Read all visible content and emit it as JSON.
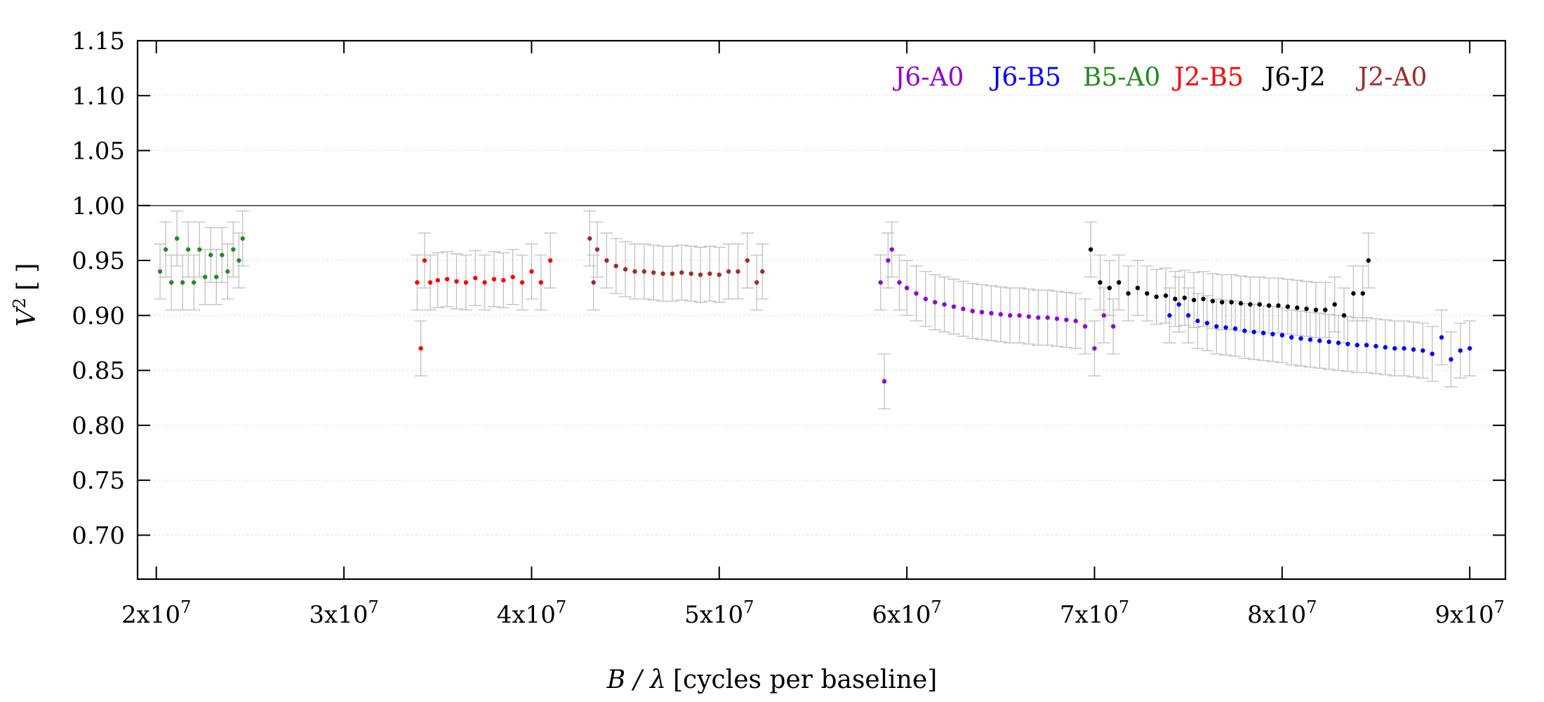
{
  "chart_data": {
    "type": "scatter",
    "title": "",
    "xlabel": "B / λ [cycles per baseline]",
    "xlabel_symbol": "B / λ",
    "xlabel_text": "[cycles per baseline]",
    "ylabel": "V² [ ]",
    "ylabel_symbol": "V",
    "ylabel_sup": "2",
    "ylabel_unit": "[ ]",
    "xlim": [
      19000000,
      91900000
    ],
    "ylim": [
      0.66,
      1.15
    ],
    "grid": "horizontal dotted",
    "reference_line_y": 1.0,
    "legend_position": "top-right",
    "x_ticks": [
      {
        "value": 20000000,
        "mant": "2x10",
        "exp": "7"
      },
      {
        "value": 30000000,
        "mant": "3x10",
        "exp": "7"
      },
      {
        "value": 40000000,
        "mant": "4x10",
        "exp": "7"
      },
      {
        "value": 50000000,
        "mant": "5x10",
        "exp": "7"
      },
      {
        "value": 60000000,
        "mant": "6x10",
        "exp": "7"
      },
      {
        "value": 70000000,
        "mant": "7x10",
        "exp": "7"
      },
      {
        "value": 80000000,
        "mant": "8x10",
        "exp": "7"
      },
      {
        "value": 90000000,
        "mant": "9x10",
        "exp": "7"
      }
    ],
    "y_ticks": [
      {
        "value": 0.7,
        "label": "0.70"
      },
      {
        "value": 0.75,
        "label": "0.75"
      },
      {
        "value": 0.8,
        "label": "0.80"
      },
      {
        "value": 0.85,
        "label": "0.85"
      },
      {
        "value": 0.9,
        "label": "0.90"
      },
      {
        "value": 0.95,
        "label": "0.95"
      },
      {
        "value": 1.0,
        "label": "1.00"
      },
      {
        "value": 1.05,
        "label": "1.05"
      },
      {
        "value": 1.1,
        "label": "1.10"
      },
      {
        "value": 1.15,
        "label": "1.15"
      }
    ],
    "errorbar_color": "#c0c0c0",
    "series": [
      {
        "name": "J6-A0",
        "color": "#9400d3",
        "points": [
          [
            58600000,
            0.93
          ],
          [
            58800000,
            0.84
          ],
          [
            59000000,
            0.95
          ],
          [
            59200000,
            0.96
          ],
          [
            59600000,
            0.93
          ],
          [
            60000000,
            0.925
          ],
          [
            60500000,
            0.92
          ],
          [
            61000000,
            0.915
          ],
          [
            61500000,
            0.912
          ],
          [
            62000000,
            0.91
          ],
          [
            62500000,
            0.908
          ],
          [
            63000000,
            0.906
          ],
          [
            63500000,
            0.904
          ],
          [
            64000000,
            0.903
          ],
          [
            64500000,
            0.902
          ],
          [
            65000000,
            0.901
          ],
          [
            65500000,
            0.9
          ],
          [
            66000000,
            0.9
          ],
          [
            66500000,
            0.899
          ],
          [
            67000000,
            0.898
          ],
          [
            67500000,
            0.898
          ],
          [
            68000000,
            0.897
          ],
          [
            68500000,
            0.896
          ],
          [
            69000000,
            0.895
          ],
          [
            69500000,
            0.89
          ],
          [
            70000000,
            0.87
          ],
          [
            70500000,
            0.9
          ],
          [
            71000000,
            0.89
          ]
        ]
      },
      {
        "name": "J6-B5",
        "color": "#0000ff",
        "points": [
          [
            74000000,
            0.9
          ],
          [
            74500000,
            0.91
          ],
          [
            75000000,
            0.9
          ],
          [
            75500000,
            0.895
          ],
          [
            76000000,
            0.893
          ],
          [
            76500000,
            0.89
          ],
          [
            77000000,
            0.889
          ],
          [
            77500000,
            0.888
          ],
          [
            78000000,
            0.886
          ],
          [
            78500000,
            0.885
          ],
          [
            79000000,
            0.884
          ],
          [
            79500000,
            0.883
          ],
          [
            80000000,
            0.882
          ],
          [
            80500000,
            0.88
          ],
          [
            81000000,
            0.879
          ],
          [
            81500000,
            0.878
          ],
          [
            82000000,
            0.877
          ],
          [
            82500000,
            0.876
          ],
          [
            83000000,
            0.875
          ],
          [
            83500000,
            0.874
          ],
          [
            84000000,
            0.873
          ],
          [
            84500000,
            0.873
          ],
          [
            85000000,
            0.872
          ],
          [
            85500000,
            0.871
          ],
          [
            86000000,
            0.87
          ],
          [
            86500000,
            0.87
          ],
          [
            87000000,
            0.869
          ],
          [
            87500000,
            0.868
          ],
          [
            88000000,
            0.865
          ],
          [
            88500000,
            0.88
          ],
          [
            89000000,
            0.86
          ],
          [
            89500000,
            0.868
          ],
          [
            90000000,
            0.87
          ]
        ]
      },
      {
        "name": "B5-A0",
        "color": "#228b22",
        "points": [
          [
            20200000,
            0.94
          ],
          [
            20500000,
            0.96
          ],
          [
            20800000,
            0.93
          ],
          [
            21100000,
            0.97
          ],
          [
            21400000,
            0.93
          ],
          [
            21700000,
            0.96
          ],
          [
            22000000,
            0.93
          ],
          [
            22300000,
            0.96
          ],
          [
            22600000,
            0.935
          ],
          [
            22900000,
            0.955
          ],
          [
            23200000,
            0.935
          ],
          [
            23500000,
            0.955
          ],
          [
            23800000,
            0.94
          ],
          [
            24100000,
            0.96
          ],
          [
            24400000,
            0.95
          ],
          [
            24600000,
            0.97
          ]
        ]
      },
      {
        "name": "J2-B5",
        "color": "#ff0000",
        "points": [
          [
            33900000,
            0.93
          ],
          [
            34100000,
            0.87
          ],
          [
            34300000,
            0.95
          ],
          [
            34600000,
            0.93
          ],
          [
            35000000,
            0.932
          ],
          [
            35500000,
            0.933
          ],
          [
            36000000,
            0.931
          ],
          [
            36500000,
            0.93
          ],
          [
            37000000,
            0.934
          ],
          [
            37500000,
            0.93
          ],
          [
            38000000,
            0.933
          ],
          [
            38500000,
            0.932
          ],
          [
            39000000,
            0.935
          ],
          [
            39500000,
            0.93
          ],
          [
            40000000,
            0.94
          ],
          [
            40500000,
            0.93
          ],
          [
            41000000,
            0.95
          ]
        ]
      },
      {
        "name": "J6-J2",
        "color": "#000000",
        "points": [
          [
            69800000,
            0.96
          ],
          [
            70300000,
            0.93
          ],
          [
            70800000,
            0.925
          ],
          [
            71300000,
            0.93
          ],
          [
            71800000,
            0.92
          ],
          [
            72300000,
            0.925
          ],
          [
            72800000,
            0.92
          ],
          [
            73300000,
            0.917
          ],
          [
            73800000,
            0.918
          ],
          [
            74300000,
            0.915
          ],
          [
            74800000,
            0.916
          ],
          [
            75300000,
            0.914
          ],
          [
            75800000,
            0.915
          ],
          [
            76300000,
            0.913
          ],
          [
            76800000,
            0.912
          ],
          [
            77300000,
            0.912
          ],
          [
            77800000,
            0.911
          ],
          [
            78300000,
            0.91
          ],
          [
            78800000,
            0.91
          ],
          [
            79300000,
            0.909
          ],
          [
            79800000,
            0.909
          ],
          [
            80300000,
            0.908
          ],
          [
            80800000,
            0.907
          ],
          [
            81300000,
            0.906
          ],
          [
            81800000,
            0.905
          ],
          [
            82300000,
            0.905
          ],
          [
            82800000,
            0.91
          ],
          [
            83300000,
            0.9
          ],
          [
            83800000,
            0.92
          ],
          [
            84300000,
            0.92
          ],
          [
            84600000,
            0.95
          ]
        ]
      },
      {
        "name": "J2-A0",
        "color": "#a52a2a",
        "points": [
          [
            43100000,
            0.97
          ],
          [
            43300000,
            0.93
          ],
          [
            43500000,
            0.96
          ],
          [
            44000000,
            0.95
          ],
          [
            44500000,
            0.945
          ],
          [
            45000000,
            0.942
          ],
          [
            45500000,
            0.94
          ],
          [
            46000000,
            0.94
          ],
          [
            46500000,
            0.939
          ],
          [
            47000000,
            0.938
          ],
          [
            47500000,
            0.938
          ],
          [
            48000000,
            0.939
          ],
          [
            48500000,
            0.938
          ],
          [
            49000000,
            0.937
          ],
          [
            49500000,
            0.938
          ],
          [
            50000000,
            0.937
          ],
          [
            50500000,
            0.94
          ],
          [
            51000000,
            0.94
          ],
          [
            51500000,
            0.95
          ],
          [
            52000000,
            0.93
          ],
          [
            52300000,
            0.94
          ]
        ]
      }
    ]
  }
}
